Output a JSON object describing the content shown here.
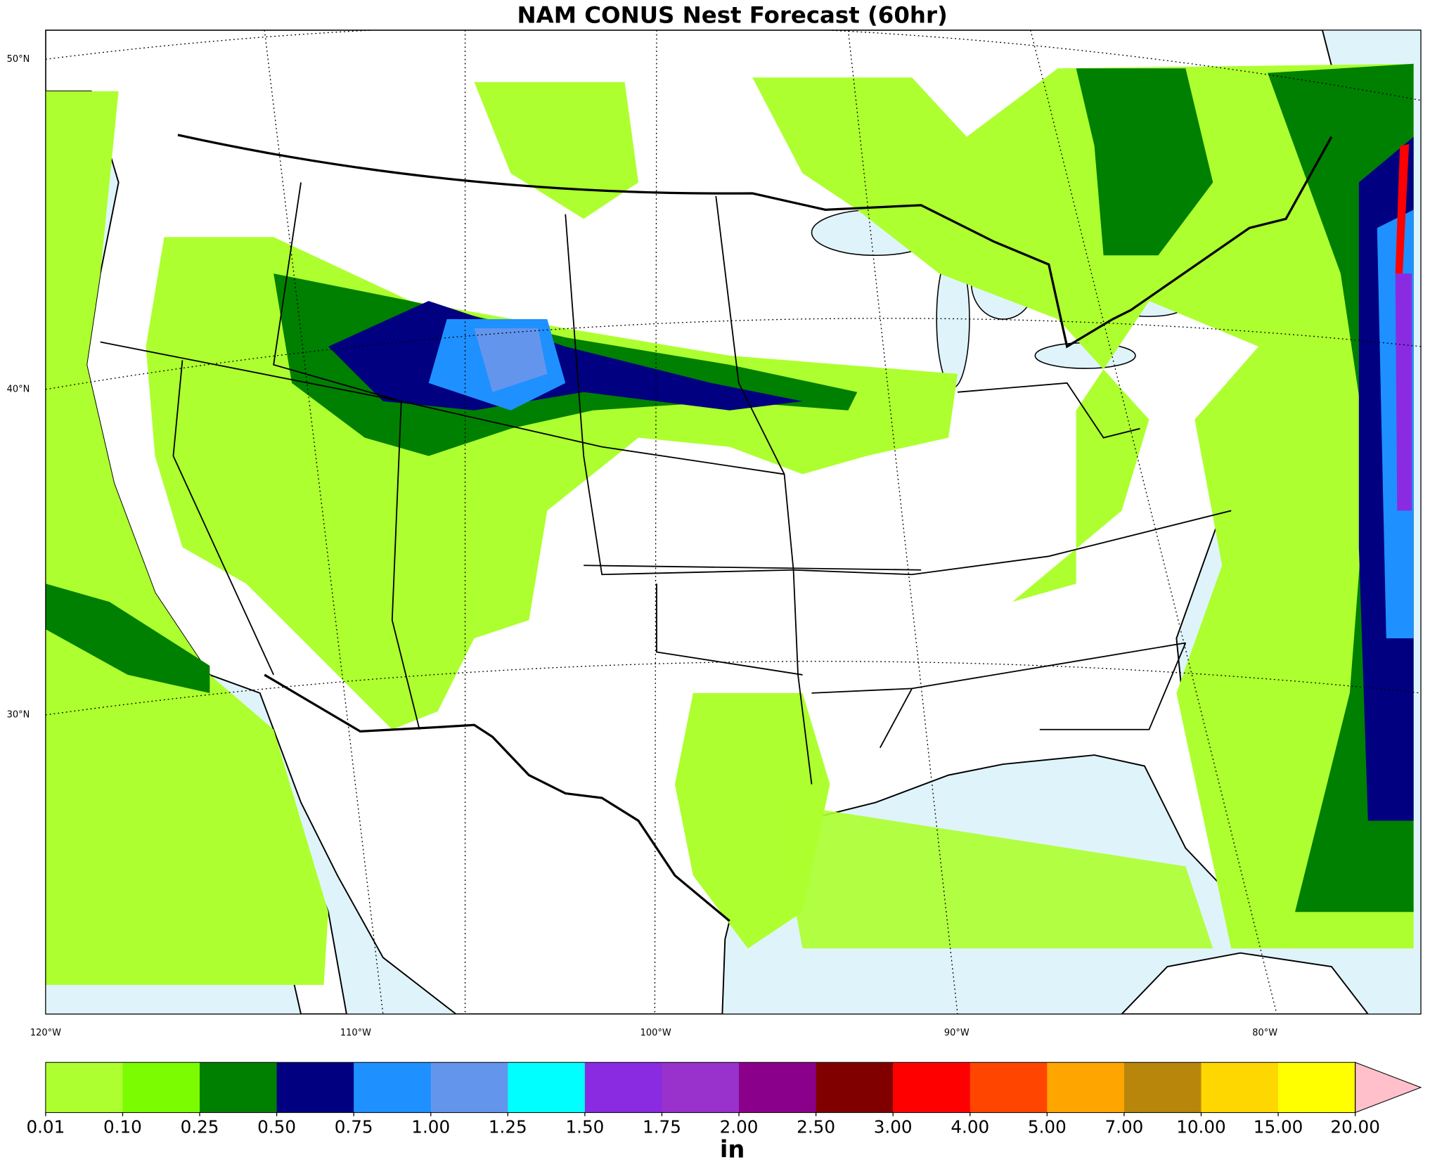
{
  "title": "NAM CONUS Nest Forecast (60hr)",
  "map": {
    "lat_labels": [
      "50°N",
      "40°N",
      "30°N"
    ],
    "lon_labels": [
      "120°W",
      "110°W",
      "100°W",
      "90°W",
      "80°W"
    ]
  },
  "colorbar": {
    "levels": [
      "0.01",
      "0.10",
      "0.25",
      "0.50",
      "0.75",
      "1.00",
      "1.25",
      "1.50",
      "1.75",
      "2.00",
      "2.50",
      "3.00",
      "4.00",
      "5.00",
      "7.00",
      "10.00",
      "15.00",
      "20.00"
    ],
    "colors": [
      "#adff2f",
      "#7cfc00",
      "#008000",
      "#000080",
      "#1e90ff",
      "#6495ed",
      "#00ffff",
      "#8a2be2",
      "#9932cc",
      "#8b008b",
      "#800000",
      "#ff0000",
      "#ff4500",
      "#ffa500",
      "#b8860b",
      "#ffd700",
      "#ffff00"
    ],
    "extend_color": "#ffc0cb",
    "unit": "in"
  }
}
